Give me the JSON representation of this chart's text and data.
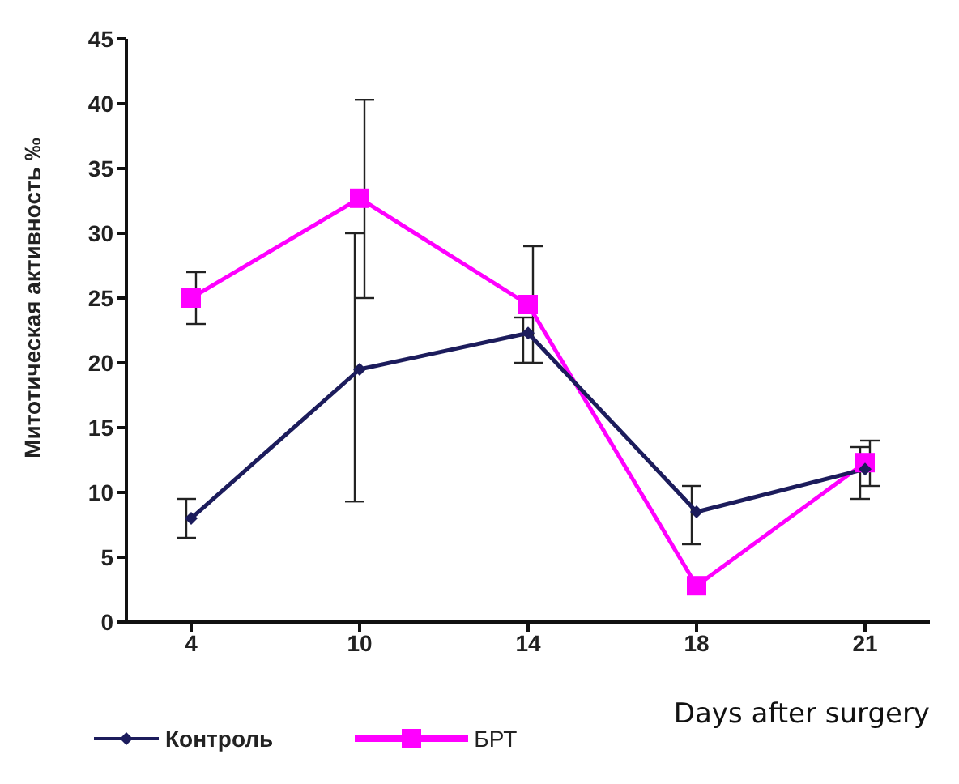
{
  "chart_data": {
    "type": "line",
    "xlabel": "Days after surgery",
    "ylabel": "Митотическая активность ‰",
    "categories": [
      "4",
      "10",
      "14",
      "18",
      "21"
    ],
    "series": [
      {
        "name": "Контроль",
        "color": "#1c1c5c",
        "marker": "diamond",
        "values": [
          8,
          19.5,
          22.3,
          8.5,
          11.8
        ],
        "errors": [
          [
            6.5,
            9.5
          ],
          [
            9.3,
            30
          ],
          [
            20,
            23.5
          ],
          [
            6,
            10.5
          ],
          [
            9.5,
            13.5
          ]
        ]
      },
      {
        "name": "БРТ",
        "color": "#ff00ff",
        "marker": "square",
        "values": [
          25,
          32.7,
          24.5,
          2.8,
          12.3
        ],
        "errors": [
          [
            23,
            27
          ],
          [
            25,
            40.3
          ],
          [
            20,
            29
          ],
          null,
          [
            10.5,
            14
          ]
        ]
      }
    ],
    "ylim": [
      0,
      45
    ],
    "yticks": [
      0,
      5,
      10,
      15,
      20,
      25,
      30,
      35,
      40,
      45
    ],
    "grid": false,
    "legend": "bottom left"
  }
}
